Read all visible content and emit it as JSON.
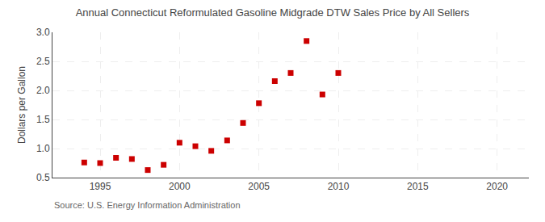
{
  "chart_data": {
    "type": "scatter",
    "title": "Annual Connecticut Reformulated Gasoline Midgrade DTW Sales Price by All Sellers",
    "y_label": "Dollars per Gallon",
    "annotations": [
      "Source: U.S. Energy Information Administration"
    ],
    "x": [
      1994,
      1995,
      1996,
      1997,
      1998,
      1999,
      2000,
      2001,
      2002,
      2003,
      2004,
      2005,
      2006,
      2007,
      2008,
      2009,
      2010
    ],
    "values": [
      0.76,
      0.75,
      0.84,
      0.82,
      0.63,
      0.72,
      1.1,
      1.04,
      0.96,
      1.14,
      1.44,
      1.78,
      2.16,
      2.3,
      2.85,
      1.93,
      2.3
    ],
    "color": "#cc0000",
    "marker": "square",
    "xlim": [
      1992,
      2022
    ],
    "xticks": [
      1995,
      2000,
      2005,
      2010,
      2015,
      2020
    ],
    "ylim": [
      0.5,
      3.0
    ],
    "yticks": [
      0.5,
      {
        "value": 1.0,
        "label": "1.0"
      },
      1.5,
      {
        "value": 2.0,
        "label": "2.0"
      },
      2.5,
      {
        "value": 3.0,
        "label": "3.0"
      }
    ],
    "grid": true
  }
}
